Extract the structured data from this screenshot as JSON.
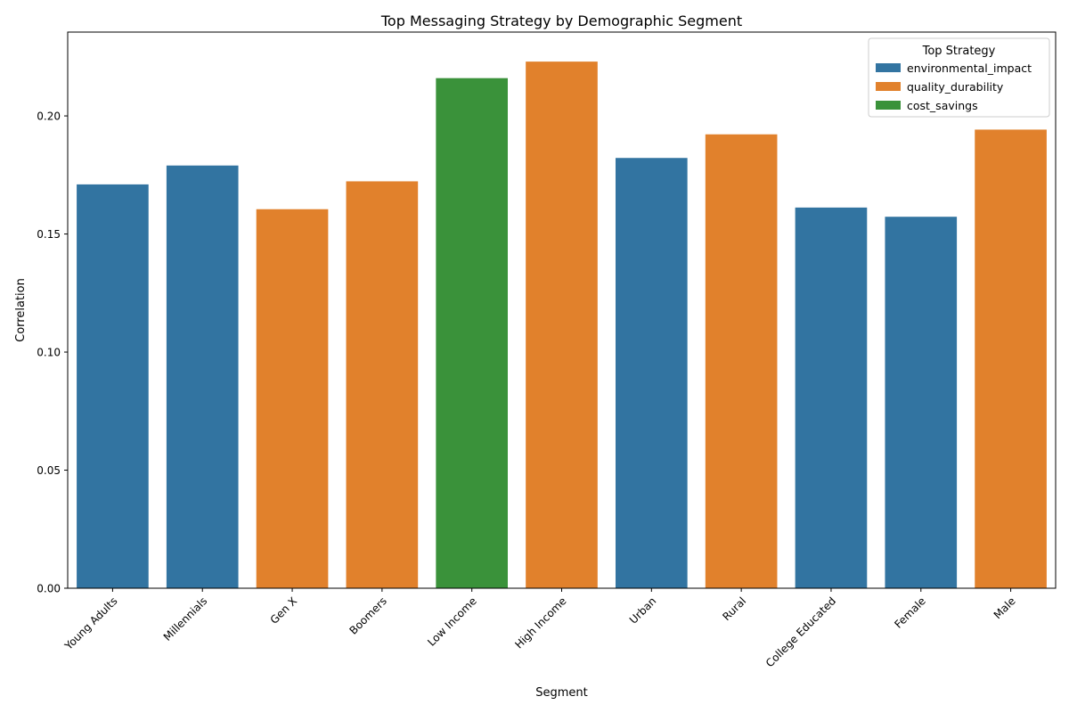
{
  "chart_data": {
    "type": "bar",
    "title": "Top Messaging Strategy by Demographic Segment",
    "xlabel": "Segment",
    "ylabel": "Correlation",
    "ylim": [
      0,
      0.2355
    ],
    "yticks": [
      "0.00",
      "0.05",
      "0.10",
      "0.15",
      "0.20"
    ],
    "grid": false,
    "legend": {
      "title": "Top Strategy",
      "placement": "top-right",
      "entries": [
        {
          "name": "environmental_impact",
          "color": "#3274a1"
        },
        {
          "name": "quality_durability",
          "color": "#e1812c"
        },
        {
          "name": "cost_savings",
          "color": "#3a923a"
        }
      ]
    },
    "categories": [
      "Young Adults",
      "Millennials",
      "Gen X",
      "Boomers",
      "Low Income",
      "High Income",
      "Urban",
      "Rural",
      "College Educated",
      "Female",
      "Male"
    ],
    "values": [
      0.171,
      0.179,
      0.1605,
      0.1723,
      0.216,
      0.223,
      0.1822,
      0.1922,
      0.1612,
      0.1573,
      0.1942
    ],
    "strategies": [
      "environmental_impact",
      "environmental_impact",
      "quality_durability",
      "quality_durability",
      "cost_savings",
      "quality_durability",
      "environmental_impact",
      "quality_durability",
      "environmental_impact",
      "environmental_impact",
      "quality_durability"
    ]
  }
}
